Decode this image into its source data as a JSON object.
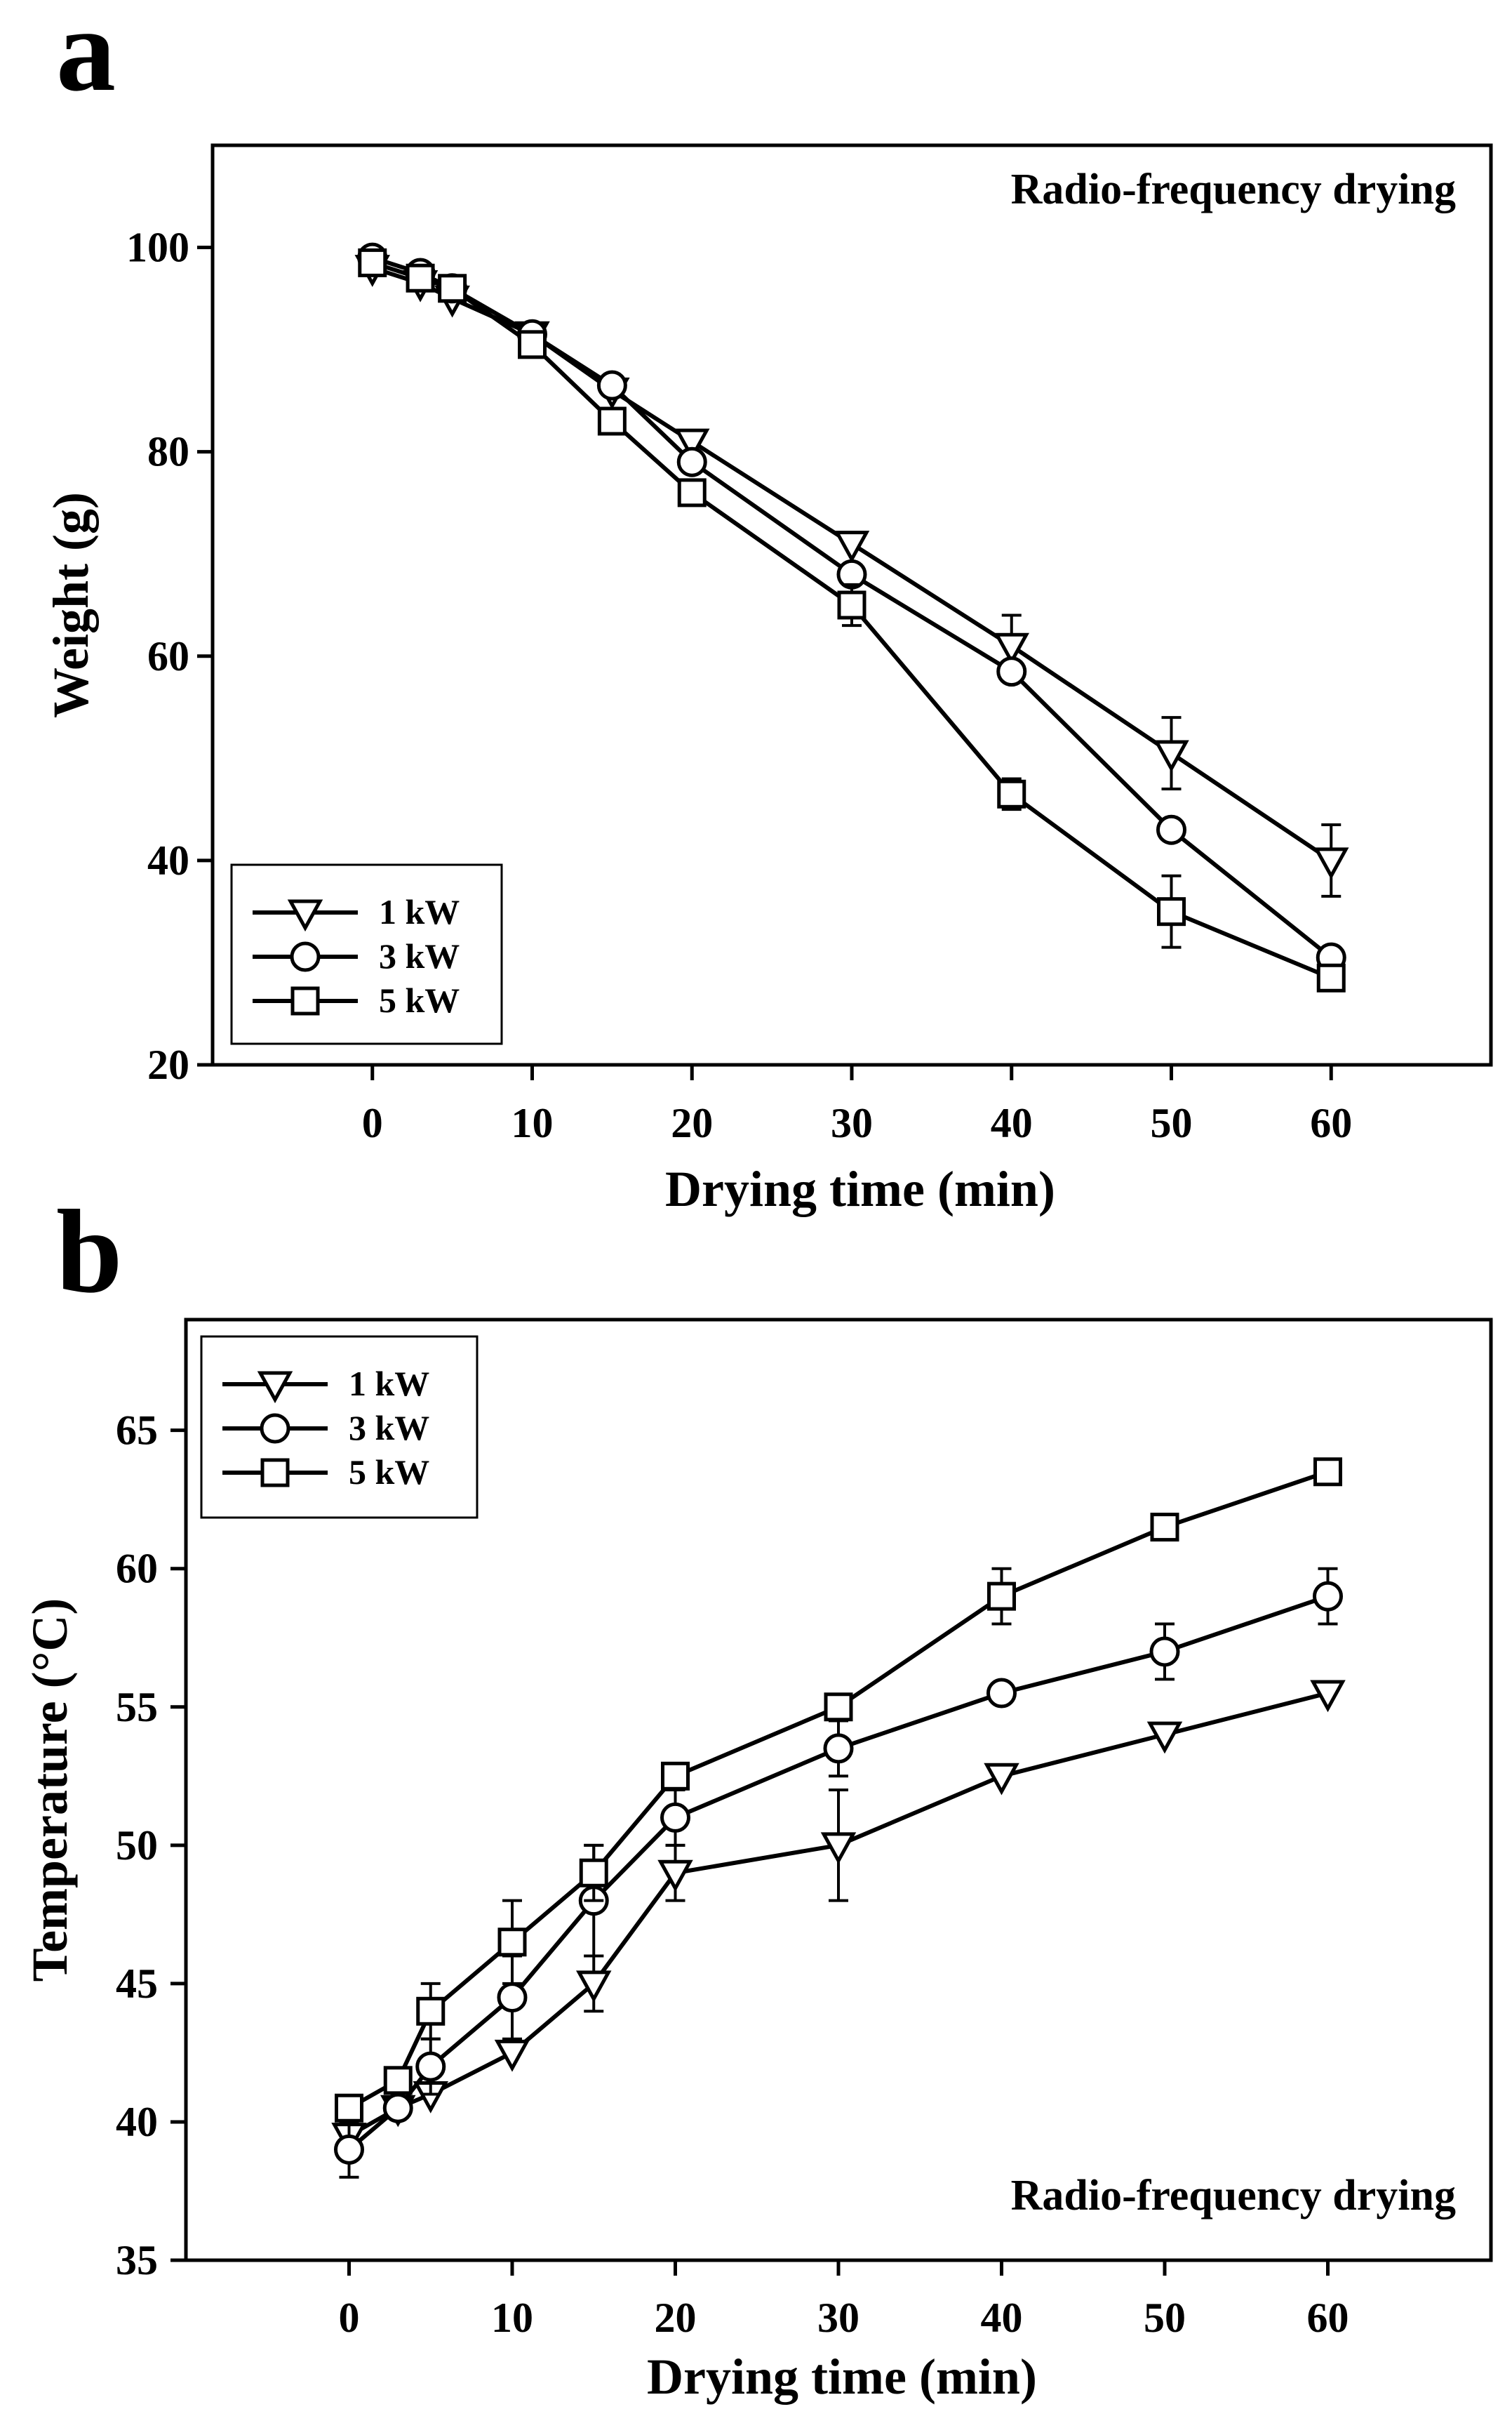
{
  "panels": [
    {
      "label": "a",
      "annotation": "Radio-frequency drying",
      "chart_data": {
        "type": "line",
        "title": "",
        "xlabel": "Drying time (min)",
        "ylabel": "Weight (g)",
        "xlim": [
          -10,
          70
        ],
        "ylim": [
          20,
          110
        ],
        "xticks": [
          0,
          10,
          20,
          30,
          40,
          50,
          60
        ],
        "yticks": [
          20,
          40,
          60,
          80,
          100
        ],
        "x": [
          0,
          3,
          5,
          10,
          15,
          20,
          30,
          40,
          50,
          60
        ],
        "legend_position": "bottom-left",
        "series": [
          {
            "name": "1 kW",
            "marker": "triangle-down",
            "values": [
              98,
              96.5,
              95,
              91.5,
              86,
              81,
              71,
              61,
              50.5,
              40
            ],
            "errors": [
              0.5,
              0.5,
              0.5,
              0.5,
              0.5,
              0.5,
              0.5,
              3,
              3.5,
              3.5
            ]
          },
          {
            "name": "3 kW",
            "marker": "circle",
            "values": [
              99,
              97.5,
              96,
              91.5,
              86.5,
              79,
              68,
              58.5,
              43,
              30.5
            ],
            "errors": [
              0.5,
              0.5,
              0.5,
              0.5,
              0.5,
              0.5,
              0.5,
              0.8,
              0.5,
              0.5
            ]
          },
          {
            "name": "5 kW",
            "marker": "square",
            "values": [
              98.5,
              97,
              96,
              90.5,
              83,
              76,
              65,
              46.5,
              35,
              28.5
            ],
            "errors": [
              0.5,
              0.5,
              0.5,
              0.5,
              0.5,
              0.5,
              2,
              1.5,
              3.5,
              0.5
            ]
          }
        ]
      }
    },
    {
      "label": "b",
      "annotation": "Radio-frequency drying",
      "chart_data": {
        "type": "line",
        "title": "",
        "xlabel": "Drying time (min)",
        "ylabel": "Temperature (°C)",
        "xlim": [
          -10,
          70
        ],
        "ylim": [
          35,
          69
        ],
        "xticks": [
          0,
          10,
          20,
          30,
          40,
          50,
          60
        ],
        "yticks": [
          35,
          40,
          45,
          50,
          55,
          60,
          65
        ],
        "x": [
          0,
          3,
          5,
          10,
          15,
          20,
          30,
          40,
          50,
          60
        ],
        "legend_position": "top-left",
        "series": [
          {
            "name": "1 kW",
            "marker": "triangle-down",
            "values": [
              39.5,
              40.5,
              41,
              42.5,
              45,
              49,
              50,
              52.5,
              54,
              55.5
            ],
            "errors": [
              0.3,
              0.3,
              0.3,
              0.3,
              1,
              1,
              2,
              0.5,
              0.3,
              0.5
            ]
          },
          {
            "name": "3 kW",
            "marker": "circle",
            "values": [
              39,
              40.5,
              42,
              44.5,
              48,
              51,
              53.5,
              55.5,
              57,
              59
            ],
            "errors": [
              1,
              0.3,
              1,
              1.5,
              2,
              1,
              1,
              0.5,
              1,
              1
            ]
          },
          {
            "name": "5 kW",
            "marker": "square",
            "values": [
              40.5,
              41.5,
              44,
              46.5,
              49,
              52.5,
              55,
              59,
              61.5,
              63.5
            ],
            "errors": [
              0.3,
              0.3,
              1,
              1.5,
              1,
              0.3,
              0.3,
              1,
              0.3,
              0.3
            ]
          }
        ]
      }
    }
  ]
}
